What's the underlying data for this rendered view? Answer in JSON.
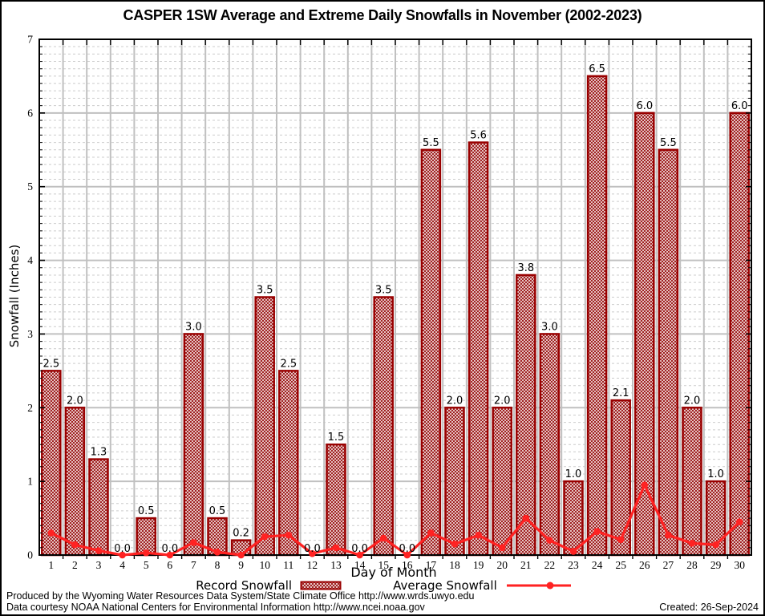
{
  "footer": {
    "line1": "Produced by the Wyoming Water Resources Data System/State Climate Office http://www.wrds.uwyo.edu",
    "line2": "Data courtesy NOAA National Centers for Environmental Information http://www.ncei.noaa.gov",
    "created": "Created: 26-Sep-2024"
  },
  "colors": {
    "bar_border": "#990000",
    "bar_hatch": "#991111",
    "avg_line": "#ff2222",
    "grid_major": "#c0c0c0",
    "grid_minor": "#cccccc",
    "frame": "#000000",
    "text": "#000000"
  },
  "chart_data": {
    "type": "bar",
    "title": "CASPER 1SW Average and Extreme Daily Snowfalls in November (2002-2023)",
    "xlabel": "Day of Month",
    "ylabel": "Snowfall (Inches)",
    "categories": [
      1,
      2,
      3,
      4,
      5,
      6,
      7,
      8,
      9,
      10,
      11,
      12,
      13,
      14,
      15,
      16,
      17,
      18,
      19,
      20,
      21,
      22,
      23,
      24,
      25,
      26,
      27,
      28,
      29,
      30
    ],
    "series": [
      {
        "name": "Record Snowfall",
        "type": "bar",
        "values": [
          2.5,
          2.0,
          1.3,
          0.0,
          0.5,
          0.0,
          3.0,
          0.5,
          0.2,
          3.5,
          2.5,
          0.0,
          1.5,
          0.0,
          3.5,
          0.0,
          5.5,
          2.0,
          5.6,
          2.0,
          3.8,
          3.0,
          1.0,
          6.5,
          2.1,
          6.0,
          5.5,
          2.0,
          1.0,
          6.0
        ]
      },
      {
        "name": "Average Snowfall",
        "type": "line",
        "values": [
          0.3,
          0.14,
          0.06,
          0.0,
          0.03,
          0.0,
          0.17,
          0.04,
          0.0,
          0.25,
          0.27,
          0.02,
          0.1,
          0.0,
          0.23,
          0.0,
          0.3,
          0.15,
          0.27,
          0.1,
          0.5,
          0.2,
          0.05,
          0.32,
          0.21,
          0.95,
          0.27,
          0.16,
          0.14,
          0.45
        ]
      }
    ],
    "ylim": [
      0,
      7
    ],
    "y_major_step": 1,
    "y_minor_step": 0.1,
    "grid": true,
    "bar_labels": true,
    "legend_position": "bottom"
  }
}
